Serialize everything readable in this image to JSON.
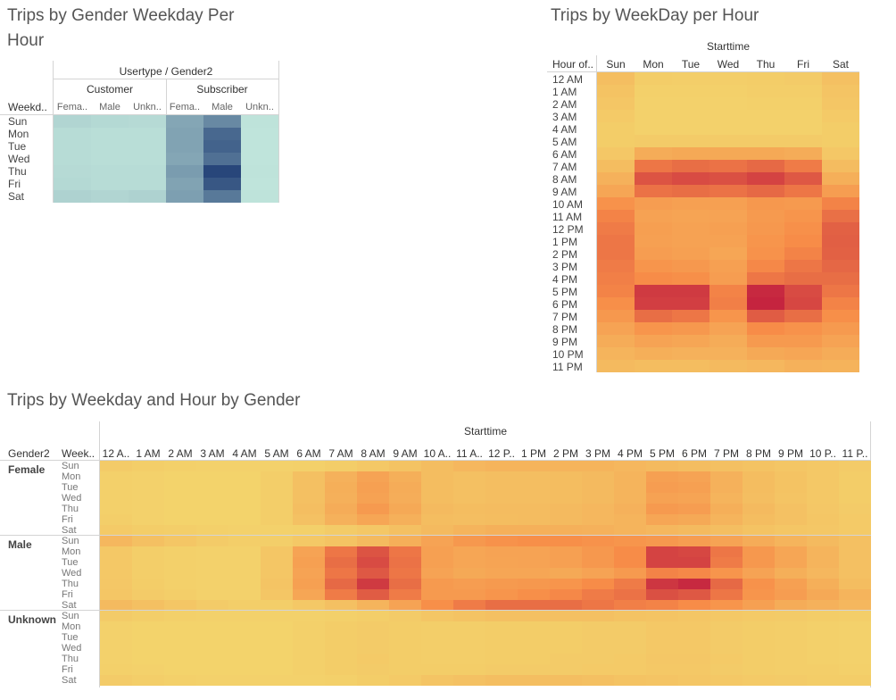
{
  "chart_data": [
    {
      "type": "heatmap",
      "title": "Trips by Gender Weekday Per Hour",
      "column_header_top": "Usertype / Gender2",
      "column_groups": [
        "Customer",
        "Subscriber"
      ],
      "columns": [
        "Fema..",
        "Male",
        "Unkn..",
        "Fema..",
        "Male",
        "Unkn.."
      ],
      "row_header": "Weekd..",
      "rows": [
        "Sun",
        "Mon",
        "Tue",
        "Wed",
        "Thu",
        "Fri",
        "Sat"
      ],
      "color_scale": {
        "low": "#c1e6dc",
        "high": "#28467a"
      },
      "values": [
        [
          10,
          8,
          7,
          38,
          55,
          2
        ],
        [
          6,
          5,
          5,
          40,
          75,
          1
        ],
        [
          6,
          5,
          5,
          40,
          78,
          1
        ],
        [
          6,
          5,
          5,
          38,
          70,
          1
        ],
        [
          7,
          6,
          6,
          44,
          95,
          2
        ],
        [
          8,
          6,
          6,
          40,
          85,
          1
        ],
        [
          12,
          10,
          12,
          42,
          65,
          2
        ]
      ]
    },
    {
      "type": "heatmap",
      "title": "Trips by WeekDay per Hour",
      "column_header_top": "Starttime",
      "row_header": "Hour of..",
      "columns": [
        "Sun",
        "Mon",
        "Tue",
        "Wed",
        "Thu",
        "Fri",
        "Sat"
      ],
      "rows": [
        "12 AM",
        "1 AM",
        "2 AM",
        "3 AM",
        "4 AM",
        "5 AM",
        "6 AM",
        "7 AM",
        "8 AM",
        "9 AM",
        "10 AM",
        "11 AM",
        "12 PM",
        "1 PM",
        "2 PM",
        "3 PM",
        "4 PM",
        "5 PM",
        "6 PM",
        "7 PM",
        "8 PM",
        "9 PM",
        "10 PM",
        "11 PM"
      ],
      "color_scale": {
        "low": "#f3d46c",
        "mid": "#f78c48",
        "high": "#c3203f"
      },
      "values": [
        [
          15,
          5,
          4,
          4,
          5,
          6,
          14
        ],
        [
          12,
          3,
          3,
          3,
          4,
          4,
          11
        ],
        [
          10,
          2,
          2,
          2,
          3,
          3,
          10
        ],
        [
          7,
          2,
          2,
          2,
          2,
          2,
          7
        ],
        [
          5,
          2,
          2,
          2,
          2,
          2,
          5
        ],
        [
          5,
          6,
          6,
          6,
          6,
          6,
          5
        ],
        [
          9,
          28,
          30,
          30,
          30,
          28,
          9
        ],
        [
          16,
          60,
          64,
          62,
          66,
          58,
          17
        ],
        [
          24,
          76,
          80,
          78,
          84,
          74,
          26
        ],
        [
          32,
          62,
          64,
          62,
          66,
          60,
          38
        ],
        [
          46,
          38,
          36,
          36,
          42,
          40,
          54
        ],
        [
          54,
          35,
          33,
          34,
          40,
          44,
          63
        ],
        [
          58,
          37,
          35,
          36,
          42,
          47,
          70
        ],
        [
          60,
          36,
          35,
          35,
          44,
          50,
          71
        ],
        [
          60,
          38,
          36,
          32,
          46,
          54,
          70
        ],
        [
          58,
          44,
          42,
          36,
          52,
          60,
          67
        ],
        [
          56,
          50,
          48,
          38,
          60,
          64,
          64
        ],
        [
          54,
          88,
          88,
          54,
          96,
          80,
          60
        ],
        [
          48,
          86,
          86,
          56,
          98,
          82,
          54
        ],
        [
          42,
          64,
          60,
          44,
          72,
          64,
          48
        ],
        [
          34,
          44,
          42,
          34,
          50,
          46,
          40
        ],
        [
          28,
          34,
          32,
          28,
          40,
          40,
          34
        ],
        [
          22,
          26,
          24,
          24,
          30,
          32,
          28
        ],
        [
          18,
          16,
          16,
          18,
          20,
          24,
          23
        ]
      ]
    },
    {
      "type": "heatmap",
      "title": "Trips by Weekday and Hour by Gender",
      "column_header_top": "Starttime",
      "row_header_1": "Gender2",
      "row_header_2": "Week..",
      "columns": [
        "12 A..",
        "1 AM",
        "2 AM",
        "3 AM",
        "4 AM",
        "5 AM",
        "6 AM",
        "7 AM",
        "8 AM",
        "9 AM",
        "10 A..",
        "11 A..",
        "12 P..",
        "1 PM",
        "2 PM",
        "3 PM",
        "4 PM",
        "5 PM",
        "6 PM",
        "7 PM",
        "8 PM",
        "9 PM",
        "10 P..",
        "11 P.."
      ],
      "groups": [
        "Female",
        "Male",
        "Unknown"
      ],
      "rows": [
        "Sun",
        "Mon",
        "Tue",
        "Wed",
        "Thu",
        "Fri",
        "Sat"
      ],
      "color_scale": {
        "low": "#f3d46c",
        "mid": "#f78c48",
        "high": "#c3203f"
      },
      "values": {
        "Female": [
          [
            6,
            4,
            3,
            2,
            2,
            2,
            3,
            5,
            8,
            12,
            16,
            20,
            22,
            22,
            22,
            22,
            20,
            18,
            16,
            14,
            12,
            10,
            8,
            6
          ],
          [
            3,
            2,
            1,
            1,
            1,
            4,
            14,
            24,
            34,
            26,
            16,
            14,
            15,
            15,
            16,
            18,
            22,
            36,
            34,
            24,
            16,
            12,
            8,
            5
          ],
          [
            3,
            2,
            1,
            1,
            1,
            4,
            14,
            26,
            36,
            28,
            16,
            14,
            15,
            15,
            16,
            18,
            22,
            38,
            36,
            24,
            16,
            12,
            8,
            5
          ],
          [
            3,
            2,
            1,
            1,
            1,
            4,
            14,
            25,
            35,
            27,
            16,
            14,
            15,
            15,
            16,
            18,
            22,
            35,
            33,
            22,
            15,
            11,
            8,
            5
          ],
          [
            3,
            2,
            1,
            1,
            1,
            4,
            15,
            28,
            40,
            30,
            18,
            16,
            17,
            17,
            18,
            20,
            24,
            40,
            38,
            26,
            18,
            13,
            9,
            6
          ],
          [
            4,
            2,
            1,
            1,
            1,
            4,
            13,
            24,
            32,
            25,
            16,
            15,
            16,
            17,
            18,
            20,
            22,
            32,
            30,
            22,
            16,
            13,
            10,
            7
          ],
          [
            7,
            5,
            4,
            3,
            2,
            2,
            3,
            6,
            9,
            14,
            18,
            22,
            25,
            25,
            25,
            24,
            22,
            20,
            18,
            15,
            12,
            10,
            9,
            7
          ]
        ],
        "Male": [
          [
            20,
            14,
            10,
            6,
            4,
            4,
            8,
            12,
            18,
            26,
            34,
            42,
            46,
            48,
            48,
            46,
            44,
            42,
            38,
            34,
            28,
            22,
            18,
            14
          ],
          [
            8,
            4,
            3,
            2,
            2,
            10,
            34,
            60,
            76,
            60,
            36,
            32,
            34,
            34,
            36,
            42,
            50,
            84,
            82,
            60,
            42,
            32,
            22,
            14
          ],
          [
            8,
            4,
            3,
            2,
            2,
            10,
            36,
            64,
            80,
            62,
            36,
            32,
            33,
            34,
            36,
            42,
            50,
            84,
            84,
            58,
            42,
            32,
            22,
            14
          ],
          [
            8,
            4,
            3,
            2,
            2,
            10,
            34,
            60,
            74,
            60,
            34,
            30,
            32,
            32,
            30,
            34,
            40,
            54,
            52,
            44,
            34,
            26,
            20,
            14
          ],
          [
            9,
            5,
            3,
            2,
            2,
            11,
            36,
            66,
            88,
            64,
            40,
            38,
            40,
            42,
            44,
            50,
            58,
            90,
            96,
            66,
            46,
            36,
            26,
            16
          ],
          [
            10,
            6,
            4,
            2,
            2,
            10,
            32,
            58,
            72,
            58,
            40,
            40,
            44,
            48,
            52,
            58,
            62,
            78,
            74,
            60,
            44,
            38,
            30,
            22
          ],
          [
            18,
            14,
            10,
            6,
            4,
            4,
            8,
            14,
            22,
            34,
            48,
            58,
            64,
            64,
            64,
            60,
            56,
            54,
            50,
            44,
            36,
            28,
            24,
            20
          ]
        ],
        "Unknown": [
          [
            6,
            4,
            3,
            2,
            2,
            2,
            2,
            3,
            4,
            6,
            10,
            12,
            14,
            14,
            14,
            14,
            12,
            11,
            10,
            8,
            7,
            6,
            5,
            4
          ],
          [
            2,
            1,
            1,
            1,
            1,
            1,
            3,
            5,
            6,
            5,
            4,
            4,
            5,
            5,
            5,
            6,
            6,
            8,
            8,
            6,
            5,
            4,
            3,
            2
          ],
          [
            2,
            1,
            1,
            1,
            1,
            1,
            3,
            5,
            6,
            5,
            4,
            4,
            5,
            5,
            5,
            6,
            6,
            8,
            8,
            6,
            5,
            4,
            3,
            2
          ],
          [
            2,
            1,
            1,
            1,
            1,
            1,
            3,
            5,
            6,
            5,
            4,
            4,
            5,
            5,
            5,
            6,
            6,
            8,
            8,
            6,
            5,
            4,
            3,
            2
          ],
          [
            2,
            1,
            1,
            1,
            1,
            1,
            3,
            5,
            7,
            5,
            4,
            4,
            5,
            5,
            6,
            6,
            7,
            9,
            9,
            7,
            5,
            4,
            3,
            2
          ],
          [
            3,
            2,
            1,
            1,
            1,
            1,
            3,
            5,
            6,
            5,
            5,
            5,
            6,
            6,
            6,
            7,
            7,
            8,
            8,
            6,
            5,
            4,
            4,
            3
          ],
          [
            6,
            4,
            3,
            2,
            2,
            2,
            2,
            3,
            5,
            7,
            11,
            13,
            15,
            15,
            15,
            14,
            12,
            11,
            10,
            8,
            7,
            6,
            5,
            5
          ]
        ]
      }
    }
  ]
}
